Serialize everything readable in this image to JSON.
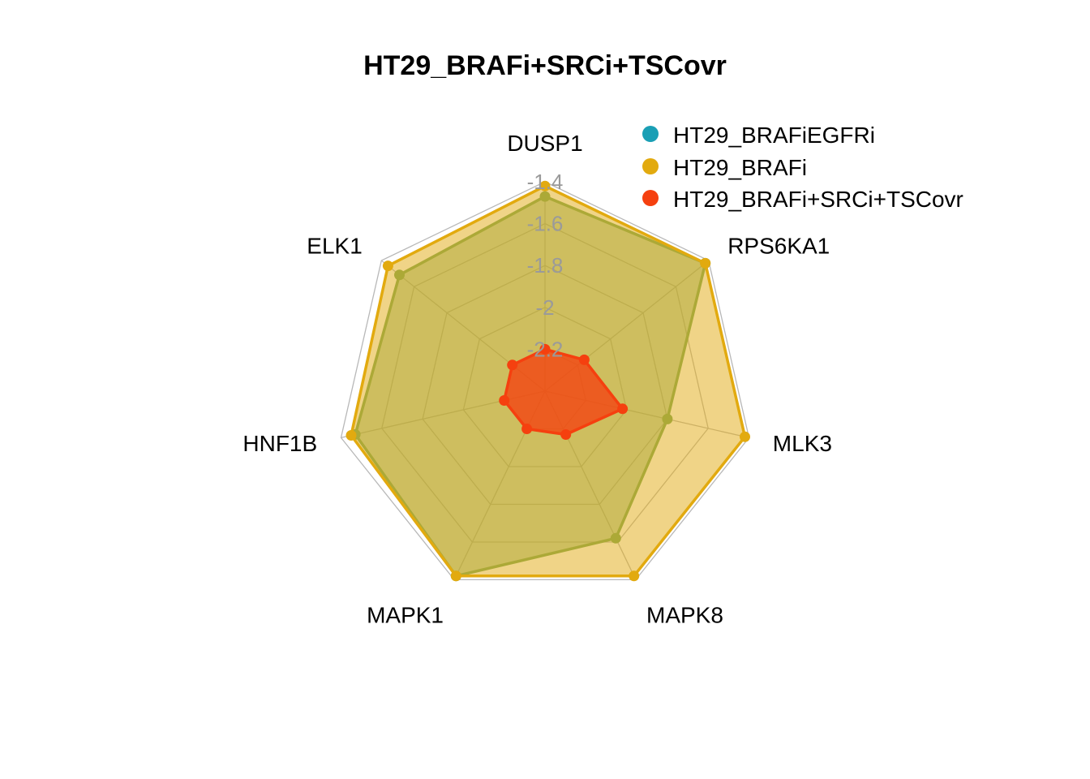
{
  "chart_data": {
    "type": "radar",
    "title": "HT29_BRAFi+SRCi+TSCovr",
    "axes": [
      "DUSP1",
      "RPS6KA1",
      "MLK3",
      "MAPK8",
      "MAPK1",
      "HNF1B",
      "ELK1"
    ],
    "rlim": [
      -2.4,
      -1.4
    ],
    "tick_labels": [
      "-1.4",
      "-1.6",
      "-1.8",
      "-2",
      "-2.2"
    ],
    "tick_values": [
      -1.4,
      -1.6,
      -1.8,
      -2.0,
      -2.2
    ],
    "grid": true,
    "legend_position": "top-right",
    "series": [
      {
        "name": "HT29_BRAFiEGFRi",
        "color": "#1a9fb5",
        "values": [
          -1.47,
          -1.42,
          -1.8,
          -1.62,
          -1.42,
          -1.47,
          -1.51
        ]
      },
      {
        "name": "HT29_BRAFi",
        "color": "#e2aa0f",
        "values": [
          -1.42,
          -1.42,
          -1.42,
          -1.42,
          -1.42,
          -1.45,
          -1.44
        ]
      },
      {
        "name": "HT29_BRAFi+SRCi+TSCovr",
        "color": "#f5400f",
        "values": [
          -2.2,
          -2.16,
          -2.02,
          -2.17,
          -2.2,
          -2.2,
          -2.2
        ]
      }
    ]
  }
}
